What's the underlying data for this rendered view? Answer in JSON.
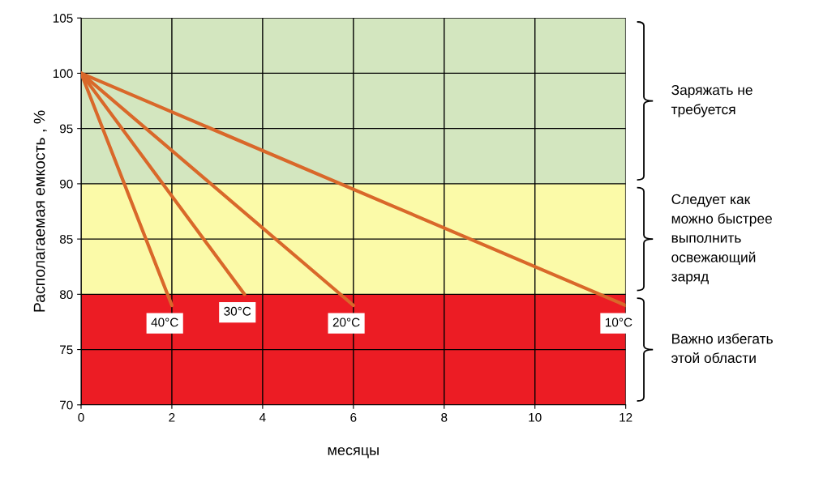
{
  "chart_data": {
    "type": "line",
    "xlabel": "месяцы",
    "ylabel": "Располагаемая емкость , %",
    "xlim": [
      0,
      12
    ],
    "ylim": [
      70,
      105
    ],
    "xticks": [
      0,
      2,
      4,
      6,
      8,
      10,
      12
    ],
    "yticks": [
      70,
      75,
      80,
      85,
      90,
      95,
      100,
      105
    ],
    "grid": true,
    "line_style": "solid",
    "series": [
      {
        "name": "10°C",
        "color": "#d9682a",
        "x": [
          0,
          12
        ],
        "values": [
          100,
          79
        ]
      },
      {
        "name": "20°C",
        "color": "#d9682a",
        "x": [
          0,
          6
        ],
        "values": [
          100,
          79
        ]
      },
      {
        "name": "30°C",
        "color": "#d9682a",
        "x": [
          0,
          3.6
        ],
        "values": [
          100,
          80
        ]
      },
      {
        "name": "40°C",
        "color": "#d9682a",
        "x": [
          0,
          2
        ],
        "values": [
          100,
          79
        ]
      }
    ],
    "annotations": [
      "Заряжать не\nтребуется",
      "Следует как\nможно быстрее\nвыполнить\nосвежающий\nзаряд",
      "Важно избегать\nэтой области"
    ],
    "bands": [
      {
        "axis": "y",
        "from": 90,
        "to": 105,
        "color": "#d3e6bf"
      },
      {
        "axis": "y",
        "from": 80,
        "to": 90,
        "color": "#fbfaa8"
      },
      {
        "axis": "y",
        "from": 70,
        "to": 80,
        "color": "#ec1c24"
      }
    ]
  }
}
